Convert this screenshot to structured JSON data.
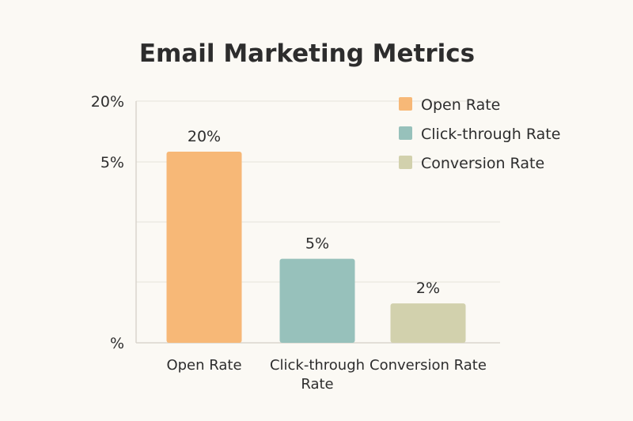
{
  "chart_data": {
    "type": "bar",
    "title": "Email Marketing Metrics",
    "xlabel": "",
    "ylabel": "",
    "y_tick_labels": [
      "20%",
      "5%",
      "%"
    ],
    "categories": [
      "Open Rate",
      "Click-through Rate",
      "Conversion Rate"
    ],
    "category_label_lines": [
      [
        "Open Rate"
      ],
      [
        "Click-through",
        "Rate"
      ],
      [
        "Conversion Rate"
      ]
    ],
    "values": [
      20,
      5,
      2
    ],
    "data_labels": [
      "20%",
      "5%",
      "2%"
    ],
    "colors": [
      "#f7b877",
      "#97c1bb",
      "#d2d1ad"
    ],
    "grid": true,
    "legend": {
      "placement": "top-right",
      "entries": [
        "Open Rate",
        "Click-through Rate",
        "Conversion Rate"
      ]
    }
  }
}
